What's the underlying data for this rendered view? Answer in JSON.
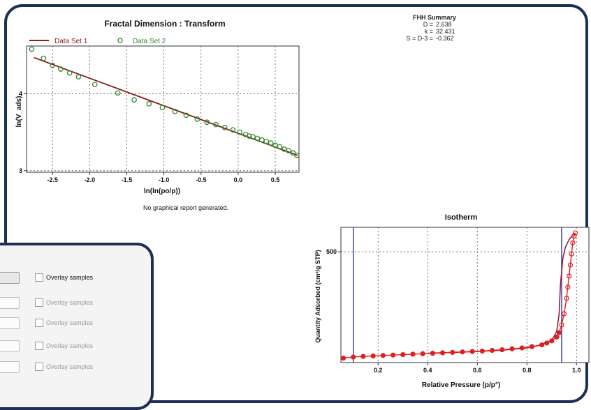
{
  "fractal_chart": {
    "title": "Fractal Dimension : Transform",
    "legend": [
      "Data Set 1",
      "Data Set 2"
    ],
    "xlabel": "ln(ln(po/p))",
    "ylabel": "ln(V_ads)",
    "xticks": [
      "-2.5",
      "-2.0",
      "-1.5",
      "-1.0",
      "-0.5",
      "0.0",
      "0.5"
    ],
    "yticks": [
      "4",
      "3"
    ]
  },
  "fhh_summary": {
    "title": "FHH Summary",
    "rows": [
      {
        "label": "D =",
        "value": "2.638"
      },
      {
        "label": "k =",
        "value": "32.431"
      },
      {
        "label": "S = D-3 =",
        "value": "-0.362"
      }
    ]
  },
  "report_message": "No graphical report generated.",
  "isotherm_chart": {
    "title": "Isotherm",
    "xlabel": "Relative Pressure (p/p°)",
    "ylabel": "Quantity Adsorbed (cm³/g STP)",
    "xticks": [
      "0.2",
      "0.4",
      "0.6",
      "0.8",
      "1.0"
    ],
    "yticks": [
      "500"
    ]
  },
  "overlay_panel": {
    "rows": [
      {
        "label": "Overlay samples",
        "active": true
      },
      {
        "label": "Overlay samples",
        "active": false
      },
      {
        "label": "Overlay samples",
        "active": false
      },
      {
        "label": "Overlay samples",
        "active": false
      },
      {
        "label": "Overlay samples",
        "active": false
      }
    ]
  },
  "chart_data": [
    {
      "type": "scatter",
      "title": "Fractal Dimension : Transform",
      "xlabel": "ln(ln(po/p))",
      "ylabel": "ln(V_ads)",
      "xlim": [
        -2.85,
        0.82
      ],
      "ylim": [
        2.98,
        4.62
      ],
      "legend_position": "top-left",
      "grid": true,
      "series": [
        {
          "name": "Data Set 1",
          "kind": "line",
          "color": "#8b1a1a",
          "x": [
            -2.75,
            0.8
          ],
          "y": [
            4.47,
            3.2
          ]
        },
        {
          "name": "Data Set 2",
          "kind": "scatter",
          "color": "#2e8b2e",
          "x": [
            -2.78,
            -2.62,
            -2.5,
            -2.39,
            -2.27,
            -2.15,
            -1.93,
            -1.62,
            -1.4,
            -1.2,
            -1.02,
            -0.85,
            -0.7,
            -0.55,
            -0.42,
            -0.3,
            -0.18,
            -0.07,
            0.02,
            0.1,
            0.15,
            0.2,
            0.26,
            0.32,
            0.38,
            0.44,
            0.5,
            0.56,
            0.62,
            0.68,
            0.74,
            0.79
          ],
          "y": [
            4.58,
            4.46,
            4.37,
            4.32,
            4.27,
            4.22,
            4.12,
            4.01,
            3.92,
            3.87,
            3.82,
            3.77,
            3.72,
            3.67,
            3.63,
            3.6,
            3.56,
            3.53,
            3.5,
            3.47,
            3.45,
            3.44,
            3.42,
            3.4,
            3.38,
            3.36,
            3.33,
            3.31,
            3.28,
            3.26,
            3.23,
            3.2
          ]
        }
      ]
    },
    {
      "type": "scatter",
      "title": "Isotherm",
      "xlabel": "Relative Pressure (p/p°)",
      "ylabel": "Quantity Adsorbed (cm³/g STP)",
      "xlim": [
        0.05,
        1.05
      ],
      "ylim": [
        0,
        610
      ],
      "grid": true,
      "vertical_lines": [
        0.1,
        0.94
      ],
      "series": [
        {
          "kind": "adsorption",
          "color": "#e02020",
          "x": [
            0.06,
            0.1,
            0.14,
            0.18,
            0.22,
            0.26,
            0.3,
            0.34,
            0.38,
            0.42,
            0.46,
            0.5,
            0.54,
            0.58,
            0.62,
            0.66,
            0.7,
            0.74,
            0.78,
            0.82,
            0.86,
            0.88,
            0.9,
            0.92,
            0.93,
            0.94,
            0.95,
            0.96,
            0.965,
            0.97,
            0.975,
            0.98,
            0.985,
            0.99,
            0.995
          ],
          "y": [
            20,
            25,
            28,
            30,
            32,
            34,
            36,
            38,
            40,
            42,
            44,
            46,
            48,
            50,
            52,
            55,
            58,
            62,
            66,
            72,
            80,
            88,
            98,
            115,
            135,
            170,
            220,
            290,
            340,
            390,
            440,
            490,
            540,
            570,
            585
          ]
        },
        {
          "kind": "desorption",
          "color": "#9a1b3a",
          "x": [
            0.995,
            0.985,
            0.97,
            0.955,
            0.945,
            0.935,
            0.93,
            0.92,
            0.9,
            0.85,
            0.8,
            0.7,
            0.6,
            0.5,
            0.4
          ],
          "y": [
            585,
            575,
            555,
            520,
            470,
            350,
            220,
            140,
            100,
            78,
            66,
            56,
            50,
            46,
            42
          ]
        }
      ]
    }
  ]
}
